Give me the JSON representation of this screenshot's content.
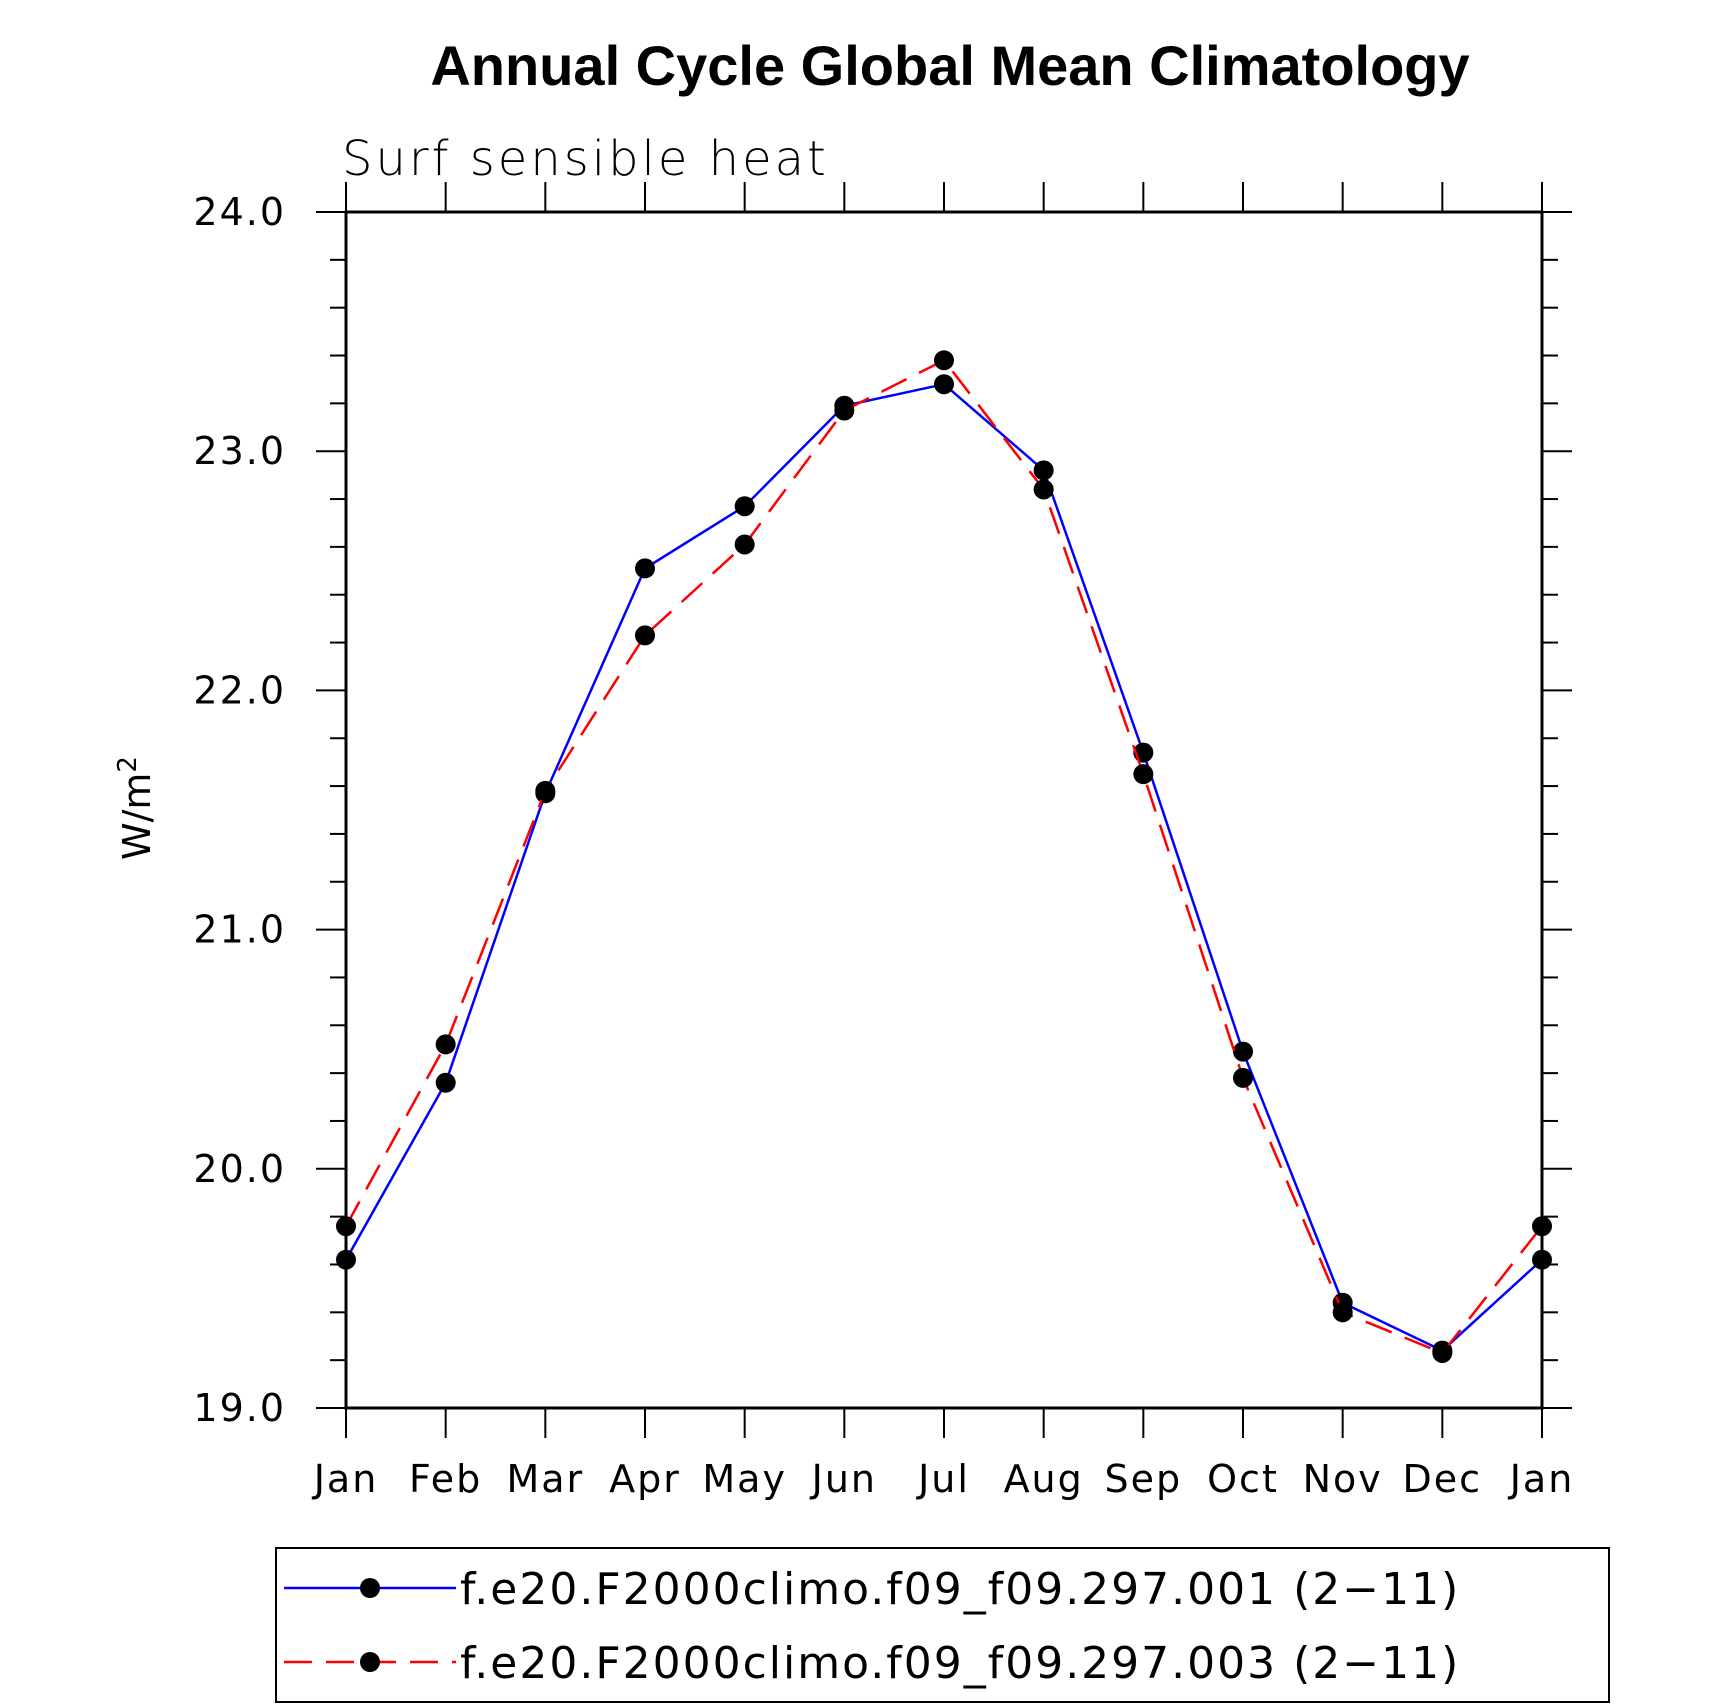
{
  "chart_data": {
    "type": "line",
    "title": "Annual Cycle Global Mean Climatology",
    "subtitle": "Surf  sensible  heat",
    "xlabel": "",
    "ylabel": "W/m",
    "ylabel_sup": "2",
    "categories": [
      "Jan",
      "Feb",
      "Mar",
      "Apr",
      "May",
      "Jun",
      "Jul",
      "Aug",
      "Sep",
      "Oct",
      "Nov",
      "Dec",
      "Jan"
    ],
    "ylim": [
      19.0,
      24.0
    ],
    "yticks": [
      "19.0",
      "20.0",
      "21.0",
      "22.0",
      "23.0",
      "24.0"
    ],
    "series": [
      {
        "name": "f.e20.F2000climo.f09_f09.297.001 (2−11)",
        "color": "#0000ff",
        "dash": "solid",
        "values": [
          19.62,
          20.36,
          21.57,
          22.51,
          22.77,
          23.19,
          23.28,
          22.92,
          21.74,
          20.49,
          19.44,
          19.24,
          19.62
        ]
      },
      {
        "name": "f.e20.F2000climo.f09_f09.297.003 (2−11)",
        "color": "#ff0000",
        "dash": "dashed",
        "values": [
          19.76,
          20.52,
          21.58,
          22.23,
          22.61,
          23.17,
          23.38,
          22.84,
          21.65,
          20.38,
          19.4,
          19.23,
          19.76
        ]
      }
    ],
    "legend_position": "bottom"
  }
}
